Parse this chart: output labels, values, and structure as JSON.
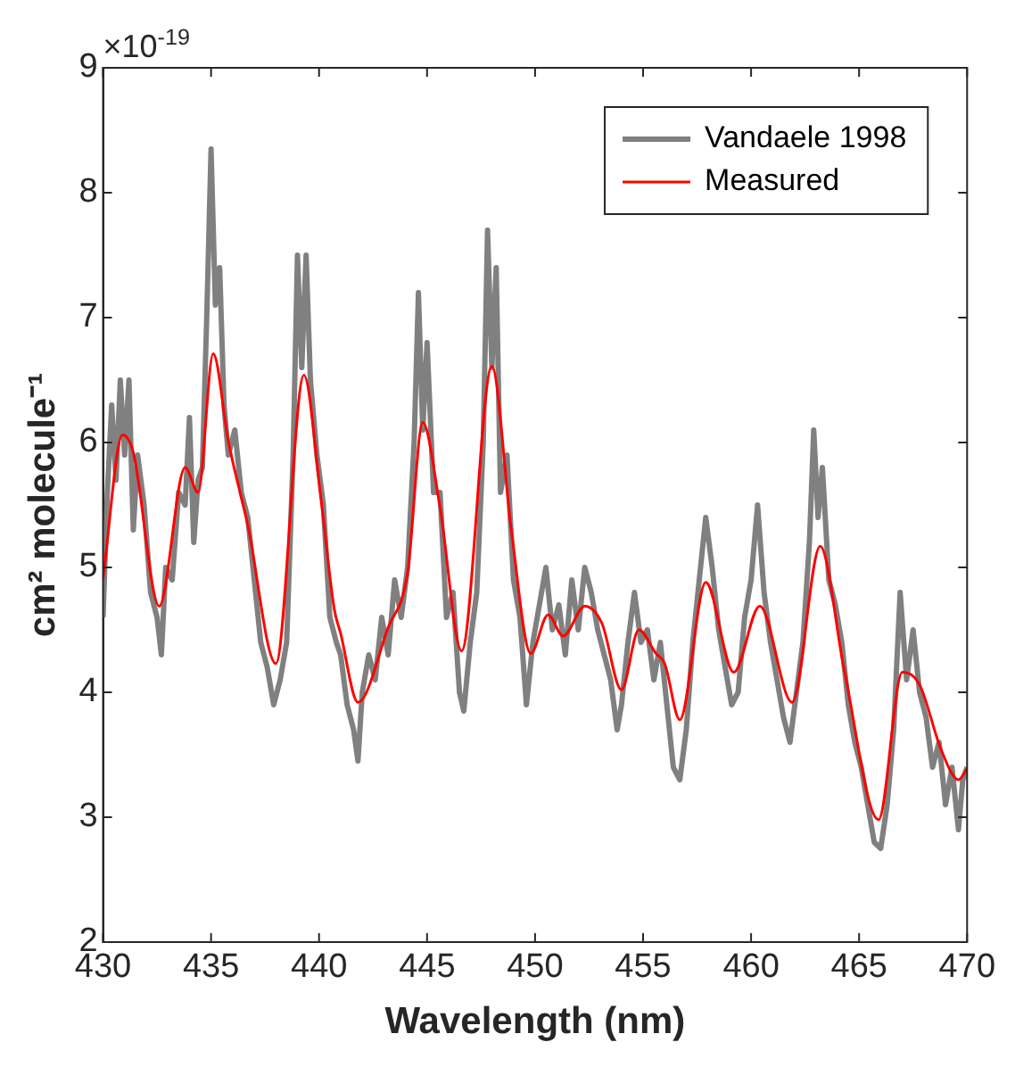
{
  "chart_data": {
    "type": "line",
    "xlabel": "Wavelength (nm)",
    "ylabel": "cm² molecule⁻¹",
    "annotations": [
      "×10$^{-19}$"
    ],
    "xlim": [
      430,
      470
    ],
    "xticks": [
      430,
      435,
      440,
      445,
      450,
      455,
      460,
      465,
      470
    ],
    "ylim": [
      2,
      9
    ],
    "yticks": [
      2,
      3,
      4,
      5,
      6,
      7,
      8,
      9
    ],
    "grid": false,
    "legend": "top right",
    "marker": "none",
    "line_style": "solid",
    "series": [
      {
        "name": "Vandaele 1998",
        "color": "#808080",
        "x": [
          430.0,
          430.2,
          430.4,
          430.6,
          430.8,
          431.0,
          431.2,
          431.4,
          431.6,
          431.9,
          432.2,
          432.5,
          432.7,
          432.9,
          433.2,
          433.5,
          433.8,
          434.0,
          434.2,
          434.4,
          434.6,
          434.8,
          435.0,
          435.2,
          435.4,
          435.6,
          435.8,
          436.1,
          436.4,
          436.7,
          437.0,
          437.3,
          437.6,
          437.9,
          438.2,
          438.5,
          438.8,
          439.0,
          439.2,
          439.4,
          439.6,
          439.9,
          440.2,
          440.5,
          440.8,
          441.0,
          441.3,
          441.6,
          441.8,
          442.0,
          442.3,
          442.6,
          442.9,
          443.2,
          443.5,
          443.8,
          444.1,
          444.4,
          444.6,
          444.8,
          445.0,
          445.3,
          445.6,
          445.9,
          446.2,
          446.5,
          446.7,
          447.0,
          447.3,
          447.6,
          447.8,
          448.0,
          448.2,
          448.4,
          448.7,
          449.0,
          449.3,
          449.6,
          449.9,
          450.2,
          450.5,
          450.8,
          451.1,
          451.4,
          451.7,
          452.0,
          452.3,
          452.6,
          452.9,
          453.2,
          453.5,
          453.8,
          454.0,
          454.3,
          454.6,
          454.9,
          455.2,
          455.5,
          455.8,
          456.1,
          456.4,
          456.7,
          457.0,
          457.3,
          457.6,
          457.9,
          458.2,
          458.5,
          458.8,
          459.1,
          459.4,
          459.7,
          460.0,
          460.3,
          460.6,
          460.9,
          461.2,
          461.5,
          461.8,
          462.1,
          462.4,
          462.7,
          462.9,
          463.1,
          463.3,
          463.6,
          463.9,
          464.2,
          464.5,
          464.8,
          465.1,
          465.4,
          465.7,
          466.0,
          466.3,
          466.6,
          466.9,
          467.2,
          467.5,
          467.8,
          468.1,
          468.4,
          468.7,
          469.0,
          469.3,
          469.6,
          469.8,
          470.0
        ],
        "values": [
          4.6,
          5.6,
          6.3,
          5.7,
          6.5,
          5.9,
          6.5,
          5.3,
          5.9,
          5.5,
          4.8,
          4.6,
          4.3,
          5.0,
          4.9,
          5.6,
          5.5,
          6.2,
          5.2,
          5.7,
          5.8,
          7.0,
          8.35,
          7.1,
          7.4,
          6.3,
          5.9,
          6.1,
          5.6,
          5.4,
          4.9,
          4.4,
          4.2,
          3.9,
          4.1,
          4.4,
          5.9,
          7.5,
          6.6,
          7.5,
          6.5,
          5.9,
          5.5,
          4.6,
          4.4,
          4.3,
          3.9,
          3.7,
          3.45,
          4.0,
          4.3,
          4.1,
          4.6,
          4.3,
          4.9,
          4.6,
          5.0,
          6.0,
          7.2,
          6.1,
          6.8,
          5.6,
          5.6,
          4.6,
          4.8,
          4.0,
          3.85,
          4.4,
          4.8,
          6.0,
          7.7,
          6.6,
          7.4,
          5.6,
          5.9,
          4.9,
          4.6,
          3.9,
          4.4,
          4.7,
          5.0,
          4.5,
          4.7,
          4.3,
          4.9,
          4.5,
          5.0,
          4.8,
          4.5,
          4.3,
          4.1,
          3.7,
          3.9,
          4.4,
          4.8,
          4.4,
          4.5,
          4.1,
          4.4,
          3.9,
          3.4,
          3.3,
          3.7,
          4.4,
          4.9,
          5.4,
          5.0,
          4.5,
          4.2,
          3.9,
          4.0,
          4.6,
          4.9,
          5.5,
          4.8,
          4.4,
          4.1,
          3.8,
          3.6,
          4.0,
          4.4,
          5.2,
          6.1,
          5.4,
          5.8,
          4.9,
          4.7,
          4.4,
          3.9,
          3.6,
          3.4,
          3.1,
          2.8,
          2.75,
          3.1,
          3.7,
          4.8,
          4.1,
          4.5,
          4.0,
          3.8,
          3.4,
          3.6,
          3.1,
          3.4,
          2.9,
          3.3,
          3.4
        ]
      },
      {
        "name": "Measured",
        "color": "#ff0000",
        "x": [
          430.0,
          430.9,
          431.4,
          432.6,
          433.8,
          434.4,
          435.1,
          435.8,
          436.7,
          438.0,
          439.3,
          440.1,
          440.7,
          441.0,
          441.8,
          443.2,
          444.1,
          444.8,
          445.6,
          446.6,
          448.0,
          448.9,
          449.8,
          450.6,
          451.3,
          452.3,
          453.1,
          454.0,
          454.8,
          455.6,
          456.0,
          456.7,
          457.9,
          459.2,
          460.4,
          461.9,
          463.2,
          464.3,
          465.9,
          467.0,
          467.8,
          468.8,
          469.6,
          470.0
        ],
        "values": [
          4.91,
          6.06,
          5.92,
          4.69,
          5.8,
          5.6,
          6.71,
          6.01,
          5.34,
          4.23,
          6.54,
          5.53,
          4.67,
          4.47,
          3.92,
          4.52,
          4.96,
          6.16,
          5.48,
          4.33,
          6.61,
          5.3,
          4.31,
          4.62,
          4.45,
          4.69,
          4.55,
          4.02,
          4.5,
          4.31,
          4.23,
          3.78,
          4.88,
          4.16,
          4.69,
          3.92,
          5.17,
          4.19,
          2.98,
          4.16,
          4.06,
          3.54,
          3.3,
          3.39
        ]
      }
    ]
  }
}
